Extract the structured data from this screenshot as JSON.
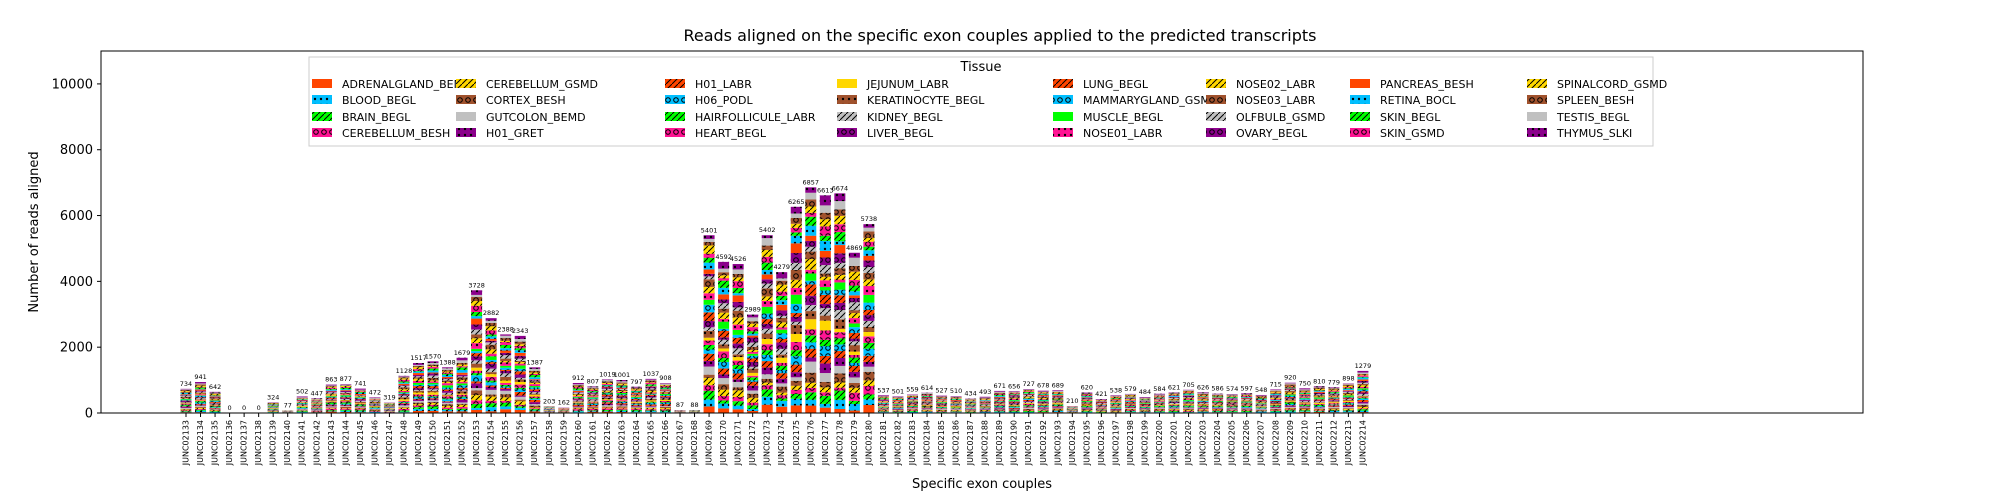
{
  "chart_data": {
    "type": "bar",
    "stacked": true,
    "title": "Reads aligned on the specific exon couples applied to the predicted transcripts",
    "xlabel": "Specific exon couples",
    "ylabel": "Number of reads aligned",
    "ylim": [
      0,
      11000
    ],
    "yticks": [
      0,
      2000,
      4000,
      6000,
      8000,
      10000
    ],
    "grid": false,
    "legend": {
      "title": "Tissue",
      "placement": "top-center",
      "columns": 8,
      "entries": [
        {
          "name": "ADRENALGLAND_BEMD",
          "color": "#ff4500",
          "hatch": "none"
        },
        {
          "name": "BLOOD_BEGL",
          "color": "#00bfff",
          "hatch": "dot"
        },
        {
          "name": "BRAIN_BEGL",
          "color": "#00ff00",
          "hatch": "slash"
        },
        {
          "name": "CEREBELLUM_BESH",
          "color": "#ff1493",
          "hatch": "ring"
        },
        {
          "name": "CEREBELLUM_GSMD",
          "color": "#ffd700",
          "hatch": "slash"
        },
        {
          "name": "CORTEX_BESH",
          "color": "#a0522d",
          "hatch": "ring"
        },
        {
          "name": "GUTCOLON_BEMD",
          "color": "#c0c0c0",
          "hatch": "none"
        },
        {
          "name": "H01_GRET",
          "color": "#8b008b",
          "hatch": "dot"
        },
        {
          "name": "H01_LABR",
          "color": "#ff4500",
          "hatch": "slash"
        },
        {
          "name": "H06_PODL",
          "color": "#00bfff",
          "hatch": "ring"
        },
        {
          "name": "HAIRFOLLICULE_LABR",
          "color": "#00ff00",
          "hatch": "slash"
        },
        {
          "name": "HEART_BEGL",
          "color": "#ff1493",
          "hatch": "ring"
        },
        {
          "name": "JEJUNUM_LABR",
          "color": "#ffd700",
          "hatch": "none"
        },
        {
          "name": "KERATINOCYTE_BEGL",
          "color": "#a0522d",
          "hatch": "dot"
        },
        {
          "name": "KIDNEY_BEGL",
          "color": "#c0c0c0",
          "hatch": "slash"
        },
        {
          "name": "LIVER_BEGL",
          "color": "#8b008b",
          "hatch": "ring"
        },
        {
          "name": "LUNG_BEGL",
          "color": "#ff4500",
          "hatch": "slash"
        },
        {
          "name": "MAMMARYGLAND_GSMD",
          "color": "#00bfff",
          "hatch": "ring"
        },
        {
          "name": "MUSCLE_BEGL",
          "color": "#00ff00",
          "hatch": "none"
        },
        {
          "name": "NOSE01_LABR",
          "color": "#ff1493",
          "hatch": "dot"
        },
        {
          "name": "NOSE02_LABR",
          "color": "#ffd700",
          "hatch": "slash"
        },
        {
          "name": "NOSE03_LABR",
          "color": "#a0522d",
          "hatch": "ring"
        },
        {
          "name": "OLFBULB_GSMD",
          "color": "#c0c0c0",
          "hatch": "slash"
        },
        {
          "name": "OVARY_BEGL",
          "color": "#8b008b",
          "hatch": "ring"
        },
        {
          "name": "PANCREAS_BESH",
          "color": "#ff4500",
          "hatch": "none"
        },
        {
          "name": "RETINA_BOCL",
          "color": "#00bfff",
          "hatch": "dot"
        },
        {
          "name": "SKIN_BEGL",
          "color": "#00ff00",
          "hatch": "slash"
        },
        {
          "name": "SKIN_GSMD",
          "color": "#ff1493",
          "hatch": "ring"
        },
        {
          "name": "SPINALCORD_GSMD",
          "color": "#ffd700",
          "hatch": "slash"
        },
        {
          "name": "SPLEEN_BESH",
          "color": "#a0522d",
          "hatch": "ring"
        },
        {
          "name": "TESTIS_BEGL",
          "color": "#c0c0c0",
          "hatch": "none"
        },
        {
          "name": "THYMUS_SLKI",
          "color": "#8b008b",
          "hatch": "dot"
        }
      ]
    },
    "categories": [
      "JUNC02133",
      "JUNC02134",
      "JUNC02135",
      "JUNC02136",
      "JUNC02137",
      "JUNC02138",
      "JUNC02139",
      "JUNC02140",
      "JUNC02141",
      "JUNC02142",
      "JUNC02143",
      "JUNC02144",
      "JUNC02145",
      "JUNC02146",
      "JUNC02147",
      "JUNC02148",
      "JUNC02149",
      "JUNC02150",
      "JUNC02151",
      "JUNC02152",
      "JUNC02153",
      "JUNC02154",
      "JUNC02155",
      "JUNC02156",
      "JUNC02157",
      "JUNC02158",
      "JUNC02159",
      "JUNC02160",
      "JUNC02161",
      "JUNC02162",
      "JUNC02163",
      "JUNC02164",
      "JUNC02165",
      "JUNC02166",
      "JUNC02167",
      "JUNC02168",
      "JUNC02169",
      "JUNC02170",
      "JUNC02171",
      "JUNC02172",
      "JUNC02173",
      "JUNC02174",
      "JUNC02175",
      "JUNC02176",
      "JUNC02177",
      "JUNC02178",
      "JUNC02179",
      "JUNC02180",
      "JUNC02181",
      "JUNC02182",
      "JUNC02183",
      "JUNC02184",
      "JUNC02185",
      "JUNC02186",
      "JUNC02187",
      "JUNC02188",
      "JUNC02189",
      "JUNC02190",
      "JUNC02191",
      "JUNC02192",
      "JUNC02193",
      "JUNC02194",
      "JUNC02195",
      "JUNC02196",
      "JUNC02197",
      "JUNC02198",
      "JUNC02199",
      "JUNC02200",
      "JUNC02201",
      "JUNC02202",
      "JUNC02203",
      "JUNC02204",
      "JUNC02205",
      "JUNC02206",
      "JUNC02207",
      "JUNC02208",
      "JUNC02209",
      "JUNC02210",
      "JUNC02211",
      "JUNC02212",
      "JUNC02213",
      "JUNC02214"
    ],
    "totals": [
      734,
      941,
      642,
      0,
      0,
      0,
      324,
      77,
      502,
      447,
      863,
      877,
      741,
      472,
      319,
      1128,
      1517,
      1570,
      1388,
      1679,
      3728,
      2882,
      2388,
      2343,
      1387,
      203,
      162,
      912,
      807,
      1019,
      1001,
      797,
      1037,
      908,
      87,
      88,
      5401,
      4592,
      4526,
      2989,
      5402,
      4279,
      6265,
      6857,
      6613,
      6674,
      4869,
      5738,
      537,
      501,
      559,
      614,
      527,
      510,
      434,
      493,
      671,
      656,
      727,
      678,
      689,
      210,
      620,
      421,
      538,
      579,
      484,
      584,
      621,
      705,
      626,
      586,
      574,
      597,
      548,
      715,
      920,
      750,
      810,
      779,
      898,
      1279
    ]
  }
}
